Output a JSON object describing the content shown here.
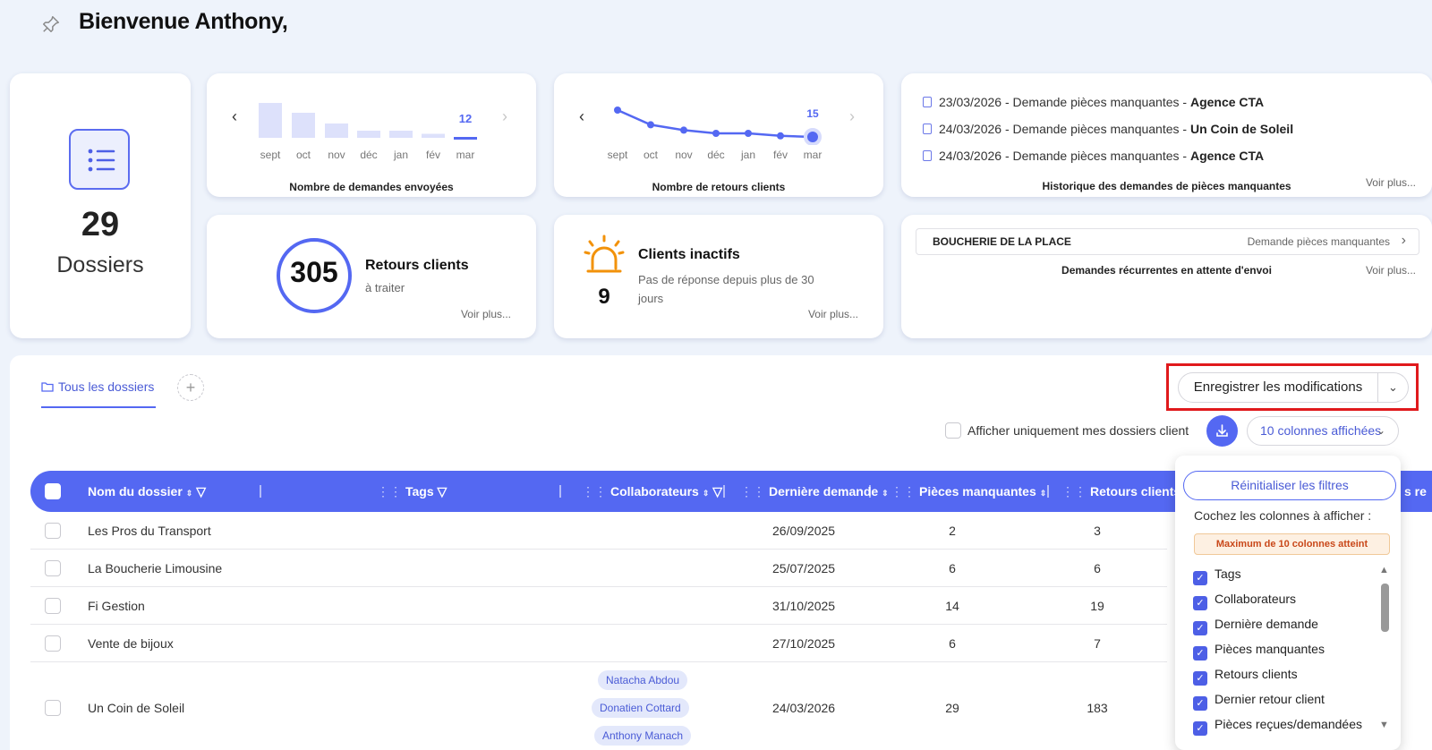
{
  "header": {
    "welcome": "Bienvenue Anthony,"
  },
  "dossiers_card": {
    "count": "29",
    "label": "Dossiers"
  },
  "demandes_chart": {
    "months": [
      "sept",
      "oct",
      "nov",
      "déc",
      "jan",
      "fév",
      "mar"
    ],
    "values": [
      0.78,
      0.56,
      0.32,
      0.16,
      0.16,
      0.09,
      0
    ],
    "current_value": "12",
    "title": "Nombre de demandes envoyées"
  },
  "retours_chart": {
    "months": [
      "sept",
      "oct",
      "nov",
      "déc",
      "jan",
      "fév",
      "mar"
    ],
    "values": [
      0.75,
      0.34,
      0.19,
      0.1,
      0.1,
      0.03,
      0
    ],
    "current_value": "15",
    "title": "Nombre de retours clients"
  },
  "history": {
    "rows": [
      {
        "text": "23/03/2026 - Demande pièces manquantes - ",
        "client": "Agence CTA"
      },
      {
        "text": "24/03/2026 - Demande pièces manquantes - ",
        "client": "Un Coin de Soleil"
      },
      {
        "text": "24/03/2026 - Demande pièces manquantes - ",
        "client": "Agence CTA"
      }
    ],
    "title": "Historique des demandes de pièces manquantes",
    "more": "Voir plus..."
  },
  "retours_card": {
    "count": "305",
    "title": "Retours clients",
    "subtitle": "à traiter",
    "more": "Voir plus..."
  },
  "inactifs_card": {
    "count": "9",
    "title": "Clients inactifs",
    "subtitle": "Pas de réponse depuis plus de 30 jours",
    "more": "Voir plus..."
  },
  "recurrent_card": {
    "client": "BOUCHERIE DE LA PLACE",
    "action": "Demande pièces manquantes",
    "title": "Demandes récurrentes en attente d'envoi",
    "more": "Voir plus..."
  },
  "tabs": {
    "active": "Tous les dossiers",
    "add": "+"
  },
  "toolbar": {
    "save": "Enregistrer les modifications",
    "only_mine": "Afficher uniquement mes dossiers client",
    "columns": "10 colonnes affichées",
    "accent": "#5468f2",
    "highlight": "#e0191c"
  },
  "table": {
    "headers": [
      "Nom du dossier",
      "Tags",
      "Collaborateurs",
      "Dernière demande",
      "Pièces manquantes",
      "Retours clients",
      "s re"
    ],
    "rows": [
      {
        "name": "Les Pros du Transport",
        "date": "26/09/2025",
        "pieces": "2",
        "retours": "3"
      },
      {
        "name": "La Boucherie Limousine",
        "date": "25/07/2025",
        "pieces": "6",
        "retours": "6"
      },
      {
        "name": "Fi Gestion",
        "date": "31/10/2025",
        "pieces": "14",
        "retours": "19"
      },
      {
        "name": "Vente de bijoux",
        "date": "27/10/2025",
        "pieces": "6",
        "retours": "7"
      },
      {
        "name": "Un Coin de Soleil",
        "date": "24/03/2026",
        "pieces": "29",
        "retours": "183"
      }
    ],
    "collaborators": [
      "Natacha Abdou",
      "Donatien Cottard",
      "Anthony Manach"
    ]
  },
  "columns_dropdown": {
    "reset": "Réinitialiser les filtres",
    "instruction": "Cochez les colonnes à afficher :",
    "warning": "Maximum de 10 colonnes atteint",
    "items": [
      "Tags",
      "Collaborateurs",
      "Dernière demande",
      "Pièces manquantes",
      "Retours clients",
      "Dernier retour client",
      "Pièces reçues/demandées"
    ]
  }
}
